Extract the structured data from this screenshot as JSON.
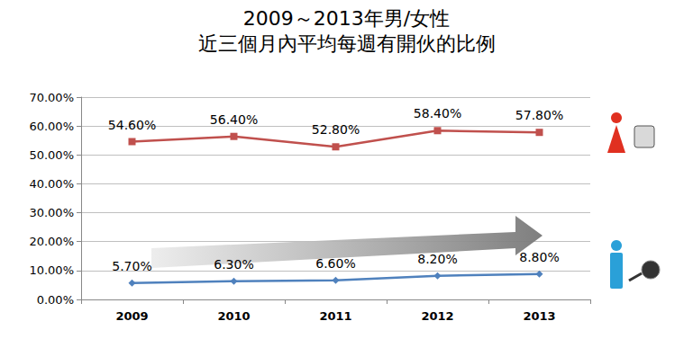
{
  "chart_data": {
    "type": "line",
    "title": "2009～2013年男/女性",
    "subtitle": "近三個月內平均每週有開伙的比例",
    "categories": [
      "2009",
      "2010",
      "2011",
      "2012",
      "2013"
    ],
    "series": [
      {
        "color": "#c0504d",
        "marker": "square",
        "values": [
          54.6,
          56.4,
          52.8,
          58.4,
          57.8
        ],
        "value_labels": [
          "54.60%",
          "56.40%",
          "52.80%",
          "58.40%",
          "57.80%"
        ]
      },
      {
        "color": "#4f81bd",
        "marker": "diamond",
        "values": [
          5.7,
          6.3,
          6.6,
          8.2,
          8.8
        ],
        "value_labels": [
          "5.70%",
          "6.30%",
          "6.60%",
          "8.20%",
          "8.80%"
        ]
      }
    ],
    "ylim": [
      0,
      70
    ],
    "yticks": [
      {
        "value": 0,
        "label": "0.00%"
      },
      {
        "value": 10,
        "label": "10.00%"
      },
      {
        "value": 20,
        "label": "20.00%"
      },
      {
        "value": 30,
        "label": "30.00%"
      },
      {
        "value": 40,
        "label": "40.00%"
      },
      {
        "value": 50,
        "label": "50.00%"
      },
      {
        "value": 60,
        "label": "60.00%"
      },
      {
        "value": 70,
        "label": "70.00%"
      }
    ],
    "grid": true,
    "data_labels": true
  }
}
